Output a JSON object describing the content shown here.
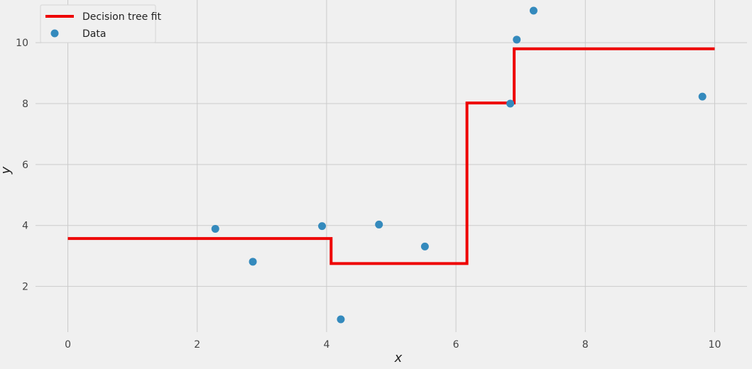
{
  "chart_data": {
    "type": "scatter",
    "title": "",
    "xlabel": "x",
    "ylabel": "y",
    "xlim": [
      -0.5,
      10.5
    ],
    "ylim": [
      0.5,
      11.4
    ],
    "xticks": [
      0,
      2,
      4,
      6,
      8,
      10
    ],
    "yticks": [
      2,
      4,
      6,
      8,
      10
    ],
    "grid": true,
    "legend_position": "top-left",
    "series": [
      {
        "name": "Decision tree fit",
        "kind": "step-line",
        "color": "#ee0000",
        "x": [
          0,
          4.07,
          4.07,
          6.17,
          6.17,
          6.9,
          6.9,
          10
        ],
        "y": [
          3.57,
          3.57,
          2.75,
          2.75,
          8.02,
          8.02,
          9.8,
          9.8
        ]
      },
      {
        "name": "Data",
        "kind": "scatter",
        "color": "#348abd",
        "x": [
          2.28,
          2.86,
          3.93,
          4.22,
          4.81,
          5.52,
          6.84,
          6.94,
          7.2,
          9.81
        ],
        "y": [
          3.89,
          2.81,
          3.98,
          0.92,
          4.03,
          3.31,
          8.0,
          10.1,
          11.05,
          8.23
        ]
      }
    ]
  }
}
